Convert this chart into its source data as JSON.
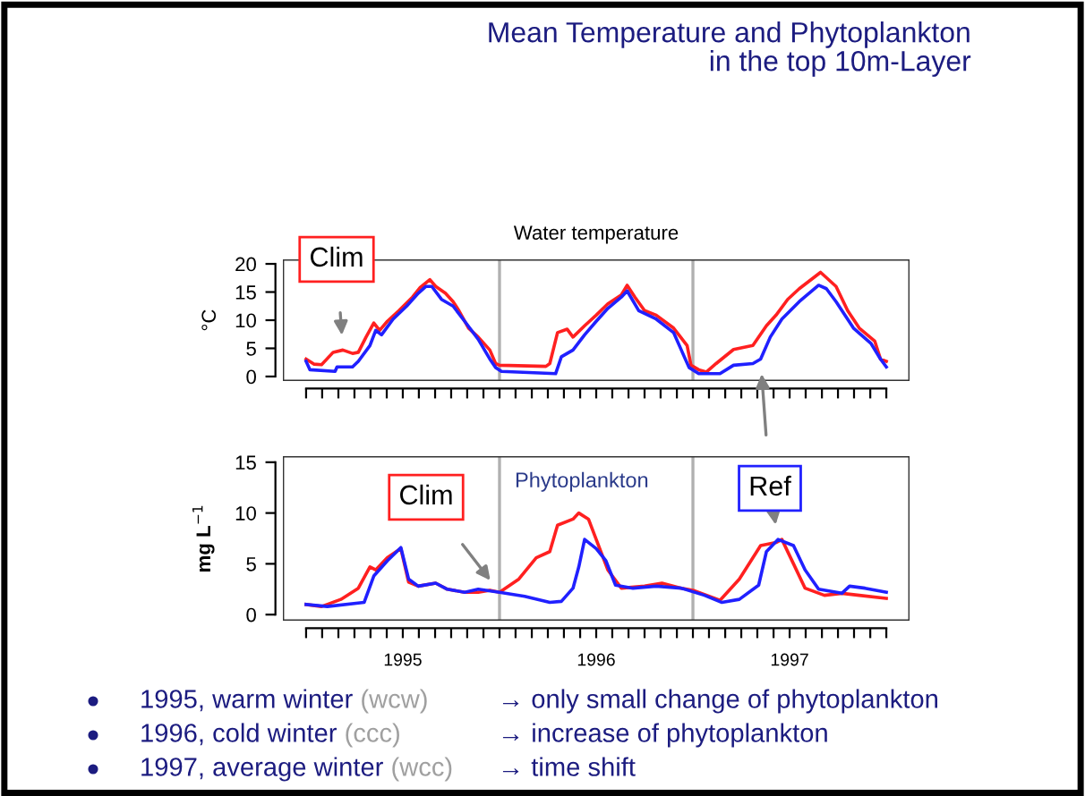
{
  "chart_data": [
    {
      "type": "line",
      "title": "Water temperature",
      "ylabel": "°C",
      "annotations": [
        "Mean Temperature and Phytoplankton\nin the top 10m-Layer"
      ],
      "xlim": [
        1994.88,
        1998.12
      ],
      "ylim": [
        -0.8,
        20.8
      ],
      "yticks": [
        0,
        5,
        10,
        15,
        20
      ],
      "xticks": [
        {
          "value": 1995.0,
          "label": null
        },
        {
          "value": 1995.083,
          "label": null
        },
        {
          "value": 1995.167,
          "label": null
        },
        {
          "value": 1995.25,
          "label": null
        },
        {
          "value": 1995.333,
          "label": null
        },
        {
          "value": 1995.417,
          "label": null
        },
        {
          "value": 1995.5,
          "label": null
        },
        {
          "value": 1995.583,
          "label": null
        },
        {
          "value": 1995.667,
          "label": null
        },
        {
          "value": 1995.75,
          "label": null
        },
        {
          "value": 1995.833,
          "label": null
        },
        {
          "value": 1995.917,
          "label": null
        },
        {
          "value": 1996.0,
          "label": null
        },
        {
          "value": 1996.083,
          "label": null
        },
        {
          "value": 1996.167,
          "label": null
        },
        {
          "value": 1996.25,
          "label": null
        },
        {
          "value": 1996.333,
          "label": null
        },
        {
          "value": 1996.417,
          "label": null
        },
        {
          "value": 1996.5,
          "label": null
        },
        {
          "value": 1996.583,
          "label": null
        },
        {
          "value": 1996.667,
          "label": null
        },
        {
          "value": 1996.75,
          "label": null
        },
        {
          "value": 1996.833,
          "label": null
        },
        {
          "value": 1996.917,
          "label": null
        },
        {
          "value": 1997.0,
          "label": null
        },
        {
          "value": 1997.083,
          "label": null
        },
        {
          "value": 1997.167,
          "label": null
        },
        {
          "value": 1997.25,
          "label": null
        },
        {
          "value": 1997.333,
          "label": null
        },
        {
          "value": 1997.417,
          "label": null
        },
        {
          "value": 1997.5,
          "label": null
        },
        {
          "value": 1997.583,
          "label": null
        },
        {
          "value": 1997.667,
          "label": null
        },
        {
          "value": 1997.75,
          "label": null
        },
        {
          "value": 1997.833,
          "label": null
        },
        {
          "value": 1997.917,
          "label": null
        },
        {
          "value": 1998.0,
          "label": null
        }
      ],
      "tick_labels": "y",
      "ref_lines": [
        {
          "axis": "x",
          "value": 1996,
          "color": "#b0b0b0"
        },
        {
          "axis": "x",
          "value": 1997,
          "color": "#b0b0b0"
        }
      ],
      "series": [
        {
          "name": "Clim",
          "color": "#ff2020",
          "x": [
            1995.0,
            1995.04,
            1995.08,
            1995.14,
            1995.19,
            1995.24,
            1995.27,
            1995.31,
            1995.35,
            1995.38,
            1995.42,
            1995.48,
            1995.55,
            1995.59,
            1995.64,
            1995.67,
            1995.72,
            1995.76,
            1995.79,
            1995.84,
            1995.89,
            1995.95,
            1995.98,
            1996.0,
            1996.24,
            1996.26,
            1996.3,
            1996.35,
            1996.38,
            1996.44,
            1996.5,
            1996.56,
            1996.63,
            1996.66,
            1996.7,
            1996.75,
            1996.81,
            1996.9,
            1996.97,
            1996.99,
            1997.03,
            1997.07,
            1997.12,
            1997.21,
            1997.31,
            1997.38,
            1997.43,
            1997.49,
            1997.55,
            1997.66,
            1997.74,
            1997.8,
            1997.86,
            1997.94,
            1997.97,
            1998.0
          ],
          "values": [
            3.1,
            2.2,
            2.1,
            4.3,
            4.7,
            4.1,
            4.3,
            7.0,
            9.5,
            8.2,
            9.8,
            11.7,
            14.1,
            15.8,
            17.2,
            16.0,
            14.8,
            13.3,
            11.7,
            8.6,
            7.0,
            4.7,
            2.3,
            2.0,
            1.8,
            2.3,
            7.8,
            8.4,
            7.0,
            9.0,
            10.9,
            12.9,
            14.5,
            16.2,
            14.1,
            11.7,
            10.9,
            8.6,
            5.5,
            2.0,
            1.2,
            0.8,
            2.3,
            4.8,
            5.5,
            9.0,
            10.9,
            13.7,
            15.6,
            18.5,
            16.0,
            11.7,
            8.6,
            6.3,
            3.1,
            2.7
          ]
        },
        {
          "name": "Ref",
          "color": "#2020ff",
          "x": [
            1995.0,
            1995.02,
            1995.15,
            1995.16,
            1995.24,
            1995.27,
            1995.33,
            1995.36,
            1995.39,
            1995.45,
            1995.52,
            1995.58,
            1995.62,
            1995.65,
            1995.7,
            1995.76,
            1995.82,
            1995.89,
            1995.95,
            1995.98,
            1996.01,
            1996.29,
            1996.32,
            1996.38,
            1996.44,
            1996.5,
            1996.56,
            1996.63,
            1996.66,
            1996.72,
            1996.81,
            1996.9,
            1996.94,
            1996.98,
            1997.03,
            1997.14,
            1997.21,
            1997.31,
            1997.35,
            1997.4,
            1997.46,
            1997.55,
            1997.65,
            1997.69,
            1997.74,
            1997.83,
            1997.92,
            1997.97,
            1998.0
          ],
          "values": [
            2.7,
            1.2,
            0.9,
            1.7,
            1.7,
            2.7,
            5.5,
            8.2,
            7.4,
            10.2,
            12.5,
            14.8,
            16.0,
            16.0,
            13.7,
            12.5,
            9.8,
            6.6,
            3.1,
            1.6,
            0.9,
            0.5,
            3.5,
            4.7,
            7.4,
            9.8,
            12.1,
            14.1,
            15.2,
            11.7,
            10.2,
            7.8,
            4.7,
            1.6,
            0.5,
            0.5,
            2.0,
            2.3,
            3.1,
            7.0,
            10.2,
            13.3,
            16.2,
            15.6,
            13.3,
            8.6,
            5.9,
            3.1,
            1.7
          ]
        }
      ]
    },
    {
      "type": "line",
      "title": "Phytoplankton",
      "ylabel": "mg L$^{−1}$",
      "annotations": [
        "1995, warm winter",
        "(wcw)",
        "→ only small change of phytoplankton",
        "1996, cold winter",
        "(ccc)",
        "→ increase of phytoplankton",
        "1997, average winter",
        "(wcc)",
        "→ time shift"
      ],
      "xlim": [
        1994.88,
        1998.12
      ],
      "ylim": [
        -0.6,
        15.6
      ],
      "yticks": [
        0,
        5,
        10,
        15
      ],
      "xticks": [
        {
          "value": 1995.0,
          "label": null
        },
        {
          "value": 1995.083,
          "label": null
        },
        {
          "value": 1995.167,
          "label": null
        },
        {
          "value": 1995.25,
          "label": null
        },
        {
          "value": 1995.333,
          "label": null
        },
        {
          "value": 1995.417,
          "label": null
        },
        {
          "value": 1995.5,
          "label": "1995"
        },
        {
          "value": 1995.583,
          "label": null
        },
        {
          "value": 1995.667,
          "label": null
        },
        {
          "value": 1995.75,
          "label": null
        },
        {
          "value": 1995.833,
          "label": null
        },
        {
          "value": 1995.917,
          "label": null
        },
        {
          "value": 1996.0,
          "label": null
        },
        {
          "value": 1996.083,
          "label": null
        },
        {
          "value": 1996.167,
          "label": null
        },
        {
          "value": 1996.25,
          "label": null
        },
        {
          "value": 1996.333,
          "label": null
        },
        {
          "value": 1996.417,
          "label": null
        },
        {
          "value": 1996.5,
          "label": "1996"
        },
        {
          "value": 1996.583,
          "label": null
        },
        {
          "value": 1996.667,
          "label": null
        },
        {
          "value": 1996.75,
          "label": null
        },
        {
          "value": 1996.833,
          "label": null
        },
        {
          "value": 1996.917,
          "label": null
        },
        {
          "value": 1997.0,
          "label": null
        },
        {
          "value": 1997.083,
          "label": null
        },
        {
          "value": 1997.167,
          "label": null
        },
        {
          "value": 1997.25,
          "label": null
        },
        {
          "value": 1997.333,
          "label": null
        },
        {
          "value": 1997.417,
          "label": null
        },
        {
          "value": 1997.5,
          "label": "1997"
        },
        {
          "value": 1997.583,
          "label": null
        },
        {
          "value": 1997.667,
          "label": null
        },
        {
          "value": 1997.75,
          "label": null
        },
        {
          "value": 1997.833,
          "label": null
        },
        {
          "value": 1997.917,
          "label": null
        },
        {
          "value": 1998.0,
          "label": null
        }
      ],
      "ref_lines": [
        {
          "axis": "x",
          "value": 1996,
          "color": "#b0b0b0"
        },
        {
          "axis": "x",
          "value": 1997,
          "color": "#b0b0b0"
        }
      ],
      "series": [
        {
          "name": "Clim",
          "color": "#ff2020",
          "x": [
            1995.0,
            1995.08,
            1995.18,
            1995.27,
            1995.33,
            1995.36,
            1995.42,
            1995.49,
            1995.53,
            1995.58,
            1995.67,
            1995.73,
            1995.82,
            1995.89,
            1995.95,
            1996.0,
            1996.1,
            1996.19,
            1996.26,
            1996.3,
            1996.38,
            1996.41,
            1996.46,
            1996.5,
            1996.56,
            1996.63,
            1996.75,
            1996.84,
            1996.94,
            1997.0,
            1997.14,
            1997.24,
            1997.35,
            1997.43,
            1997.46,
            1997.52,
            1997.58,
            1997.68,
            1997.77,
            1997.86,
            1998.0
          ],
          "values": [
            1.0,
            0.8,
            1.5,
            2.6,
            4.7,
            4.4,
            5.6,
            6.5,
            3.2,
            2.8,
            3.1,
            2.5,
            2.2,
            2.2,
            2.4,
            2.2,
            3.5,
            5.6,
            6.2,
            8.8,
            9.4,
            10.0,
            9.4,
            7.4,
            4.4,
            2.6,
            2.8,
            3.1,
            2.6,
            2.4,
            1.4,
            3.5,
            6.8,
            7.1,
            7.4,
            5.0,
            2.6,
            1.9,
            2.1,
            1.9,
            1.6
          ]
        },
        {
          "color": "#2020ff",
          "x": [
            1995.0,
            1995.11,
            1995.3,
            1995.35,
            1995.42,
            1995.49,
            1995.53,
            1995.58,
            1995.67,
            1995.73,
            1995.82,
            1995.89,
            1996.0,
            1996.13,
            1996.26,
            1996.32,
            1996.38,
            1996.41,
            1996.44,
            1996.5,
            1996.55,
            1996.6,
            1996.69,
            1996.81,
            1996.94,
            1997.06,
            1997.15,
            1997.24,
            1997.34,
            1997.38,
            1997.44,
            1997.52,
            1997.58,
            1997.65,
            1997.77,
            1997.81,
            1997.89,
            1998.0
          ],
          "values": [
            1.0,
            0.8,
            1.2,
            3.8,
            5.3,
            6.6,
            3.5,
            2.8,
            3.1,
            2.5,
            2.2,
            2.5,
            2.2,
            1.8,
            1.2,
            1.3,
            2.6,
            4.7,
            7.4,
            6.5,
            5.3,
            2.9,
            2.6,
            2.8,
            2.6,
            1.9,
            1.2,
            1.5,
            2.9,
            6.2,
            7.4,
            6.8,
            4.4,
            2.5,
            2.1,
            2.8,
            2.6,
            2.2
          ]
        }
      ]
    }
  ]
}
